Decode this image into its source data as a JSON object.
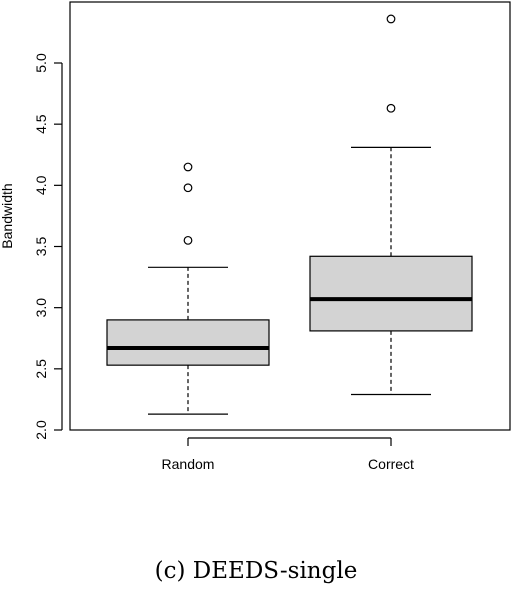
{
  "caption": "(c) DEEDS-single",
  "chart_data": {
    "type": "boxplot",
    "ylabel": "Bandwidth",
    "ylim": [
      2.0,
      5.4
    ],
    "yticks": [
      2.0,
      2.5,
      3.0,
      3.5,
      4.0,
      4.5,
      5.0
    ],
    "ytick_labels": [
      "2.0",
      "2.5",
      "3.0",
      "3.5",
      "4.0",
      "4.5",
      "5.0"
    ],
    "categories": [
      "Random",
      "Correct"
    ],
    "box_fill": "#d3d3d3",
    "boxes": [
      {
        "category": "Random",
        "whisker_low": 2.13,
        "q1": 2.53,
        "median": 2.67,
        "q3": 2.9,
        "whisker_high": 3.33,
        "outliers": [
          3.55,
          3.98,
          4.15
        ]
      },
      {
        "category": "Correct",
        "whisker_low": 2.29,
        "q1": 2.81,
        "median": 3.07,
        "q3": 3.42,
        "whisker_high": 4.31,
        "outliers": [
          4.63,
          5.36
        ]
      }
    ]
  }
}
